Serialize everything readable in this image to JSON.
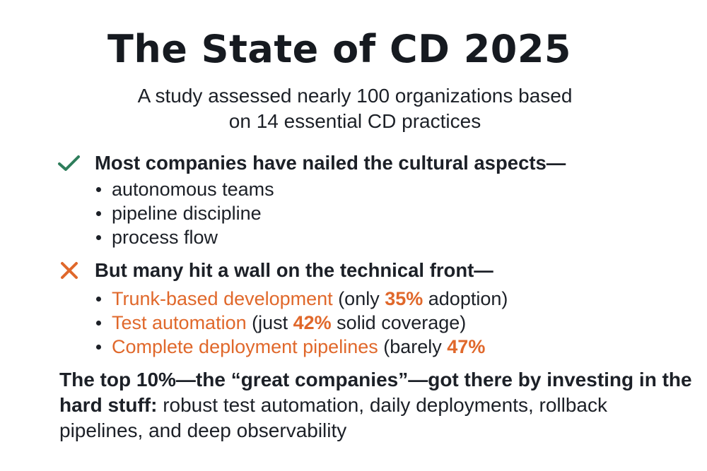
{
  "header": {
    "title": "The State of CD 2025",
    "subtitle_line1": "A study assessed nearly 100 organizations based",
    "subtitle_line2": "on 14 essential CD practices"
  },
  "strengths": {
    "icon": "check-icon",
    "icon_color": "#2e7d5b",
    "heading": "Most companies have nailed the cultural aspects—",
    "items": [
      "autonomous teams",
      "pipeline discipline",
      "process flow"
    ]
  },
  "gaps": {
    "icon": "cross-icon",
    "icon_color": "#e0682b",
    "heading": "But many hit a wall on the technical front—",
    "items": [
      {
        "practice": "Trunk-based development",
        "pre": " (only ",
        "percent": "35%",
        "post": " adoption)"
      },
      {
        "practice": "Test automation",
        "pre": " (just ",
        "percent": "42%",
        "post": " solid coverage)"
      },
      {
        "practice": "Complete deployment pipelines",
        "pre": " (barely ",
        "percent": "47%",
        "post": ""
      }
    ]
  },
  "conclusion": {
    "bold_text": "The top 10%—the “great companies”—got there by investing in the hard stuff:",
    "regular_text": " robust test automation, daily deployments, rollback pipelines, and deep observability"
  },
  "colors": {
    "text": "#1c2027",
    "accent": "#e0682b",
    "positive": "#2e7d5b"
  }
}
